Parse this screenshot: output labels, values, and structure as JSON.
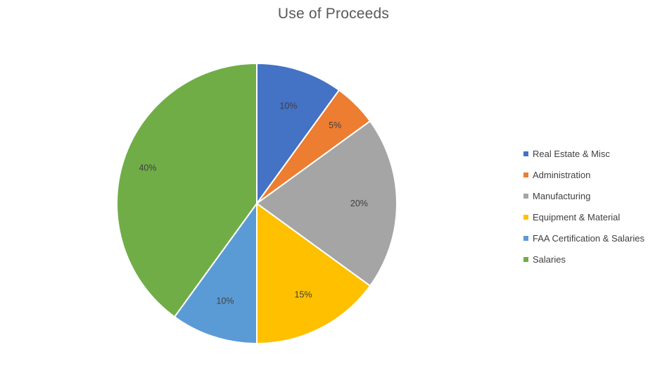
{
  "chart_data": {
    "type": "pie",
    "title": "Use of Proceeds",
    "slices": [
      {
        "label": "Real Estate & Misc",
        "value": 10,
        "value_label": "10%",
        "color": "#4472C4"
      },
      {
        "label": "Administration",
        "value": 5,
        "value_label": "5%",
        "color": "#ED7D31"
      },
      {
        "label": "Manufacturing",
        "value": 20,
        "value_label": "20%",
        "color": "#A5A5A5"
      },
      {
        "label": "Equipment & Material",
        "value": 15,
        "value_label": "15%",
        "color": "#FFC000"
      },
      {
        "label": "FAA Certification & Salaries",
        "value": 10,
        "value_label": "10%",
        "color": "#5B9BD5"
      },
      {
        "label": "Salaries",
        "value": 40,
        "value_label": "40%",
        "color": "#70AD47"
      }
    ],
    "legend_position": "right",
    "start_angle": "12 o'clock",
    "direction": "clockwise"
  }
}
